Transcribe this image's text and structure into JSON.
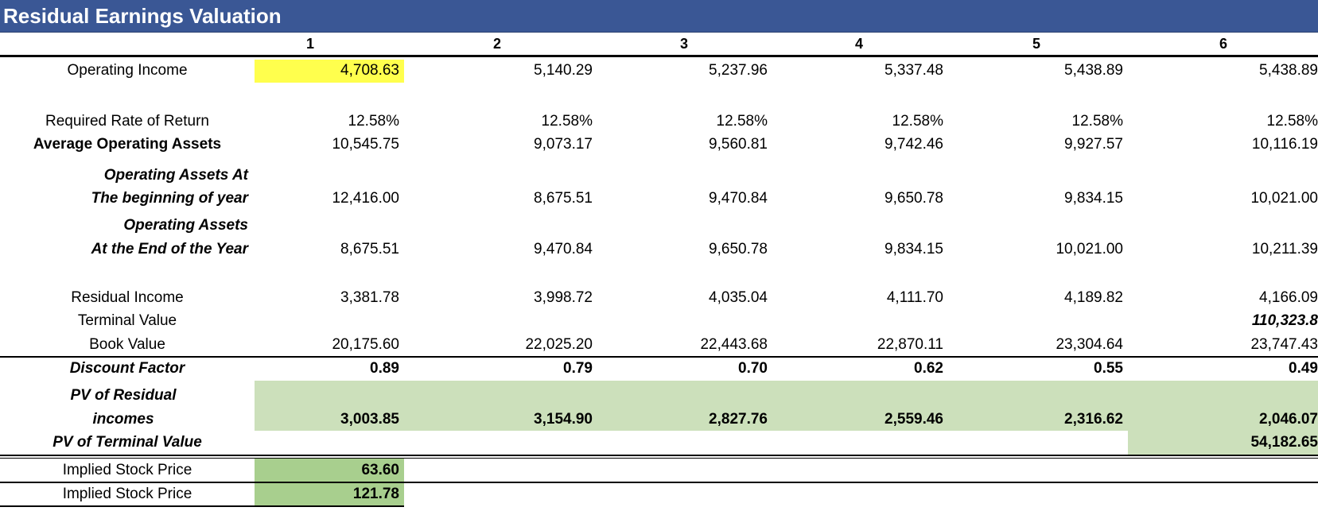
{
  "title": "Residual Earnings Valuation",
  "columns": [
    "1",
    "2",
    "3",
    "4",
    "5",
    "6"
  ],
  "rows": {
    "operating_income": {
      "label": "Operating Income",
      "values": [
        "4,708.63",
        "5,140.29",
        "5,237.96",
        "5,337.48",
        "5,438.89",
        "5,438.89"
      ]
    },
    "required_rate": {
      "label": "Required Rate of Return",
      "values": [
        "12.58%",
        "12.58%",
        "12.58%",
        "12.58%",
        "12.58%",
        "12.58%"
      ]
    },
    "avg_operating_assets": {
      "label": "Average Operating Assets",
      "values": [
        "10,545.75",
        "9,073.17",
        "9,560.81",
        "9,742.46",
        "9,927.57",
        "10,116.19"
      ]
    },
    "op_assets_begin": {
      "label_line1": "Operating Assets At",
      "label_line2": "The beginning of year",
      "values": [
        "12,416.00",
        "8,675.51",
        "9,470.84",
        "9,650.78",
        "9,834.15",
        "10,021.00"
      ]
    },
    "op_assets_end": {
      "label_line1": "Operating Assets",
      "label_line2": "At the End of the Year",
      "values": [
        "8,675.51",
        "9,470.84",
        "9,650.78",
        "9,834.15",
        "10,021.00",
        "10,211.39"
      ]
    },
    "residual_income": {
      "label": "Residual Income",
      "values": [
        "3,381.78",
        "3,998.72",
        "4,035.04",
        "4,111.70",
        "4,189.82",
        "4,166.09"
      ]
    },
    "terminal_value": {
      "label": "Terminal Value",
      "value_col6": "110,323.8"
    },
    "book_value": {
      "label": "Book Value",
      "values": [
        "20,175.60",
        "22,025.20",
        "22,443.68",
        "22,870.11",
        "23,304.64",
        "23,747.43"
      ]
    },
    "discount_factor": {
      "label": "Discount Factor",
      "values": [
        "0.89",
        "0.79",
        "0.70",
        "0.62",
        "0.55",
        "0.49"
      ]
    },
    "pv_residual": {
      "label_line1": "PV of Residual",
      "label_line2": "incomes",
      "values": [
        "3,003.85",
        "3,154.90",
        "2,827.76",
        "2,559.46",
        "2,316.62",
        "2,046.07"
      ]
    },
    "pv_terminal": {
      "label": "PV of Terminal Value",
      "value_col6": "54,182.65"
    },
    "implied_price_1": {
      "label": "Implied Stock Price",
      "value": "63.60"
    },
    "implied_price_2": {
      "label": "Implied Stock Price",
      "value": "121.78"
    }
  },
  "colors": {
    "title_bg": "#3A5795",
    "highlight_yellow": "#FFFF4D",
    "light_green": "#CCE0BB",
    "green": "#A8CF8E"
  }
}
